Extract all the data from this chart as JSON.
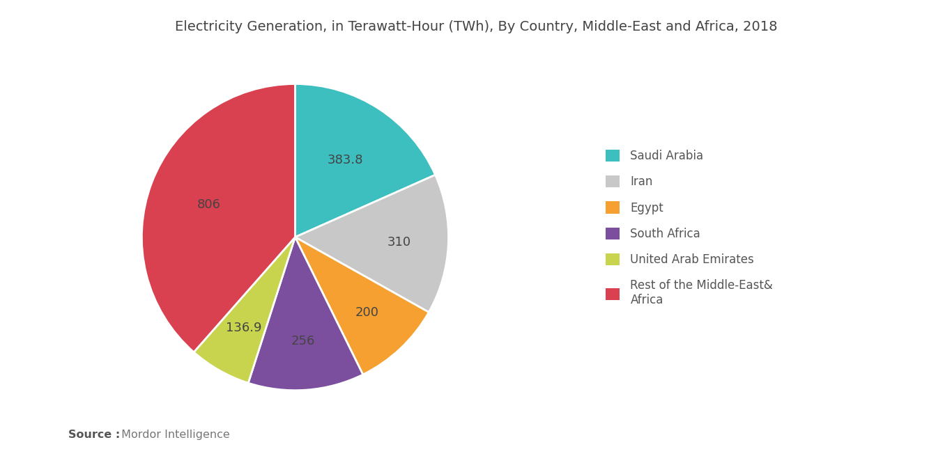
{
  "title": "Electricity Generation, in Terawatt-Hour (TWh), By Country, Middle-East and Africa, 2018",
  "values": [
    383.8,
    310,
    200,
    256,
    136.9,
    806
  ],
  "colors": [
    "#3dbfc0",
    "#c8c8c8",
    "#f5a030",
    "#7b4f9e",
    "#c8d44e",
    "#d94050"
  ],
  "label_texts": [
    "383.8",
    "310",
    "200",
    "256",
    "136.9",
    "806"
  ],
  "legend_labels": [
    "Saudi Arabia",
    "Iran",
    "Egypt",
    "South Africa",
    "United Arab Emirates",
    "Rest of the Middle-East&\nAfrica"
  ],
  "source_bold": "Source :",
  "source_normal": " Mordor Intelligence",
  "background_color": "#ffffff",
  "title_fontsize": 14,
  "label_fontsize": 13,
  "legend_fontsize": 12
}
